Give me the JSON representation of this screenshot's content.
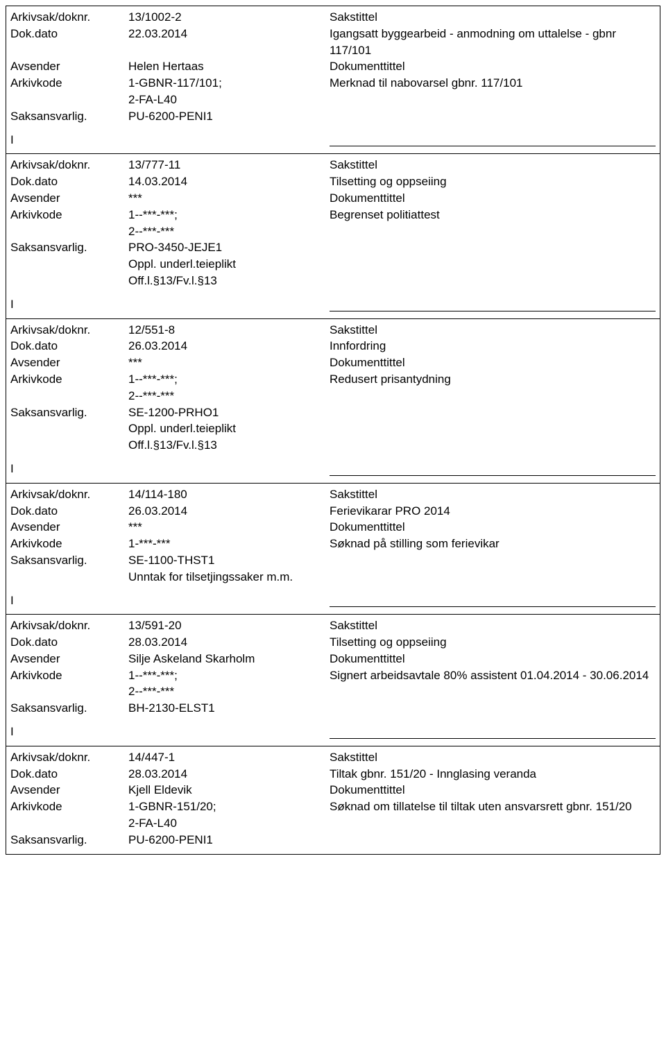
{
  "labels": {
    "arkivsak": "Arkivsak/doknr.",
    "dokdato": "Dok.dato",
    "avsender": "Avsender",
    "arkivkode": "Arkivkode",
    "saksansvarlig": "Saksansvarlig.",
    "sakstittel": "Sakstittel",
    "dokumenttittel": "Dokumenttittel",
    "i": "I"
  },
  "records": [
    {
      "arkivsak": "13/1002-2",
      "dokdato": "22.03.2014",
      "avsender": "Helen Hertaas",
      "arkivkode": "1-GBNR-117/101;\n2-FA-L40",
      "saksansvarlig": "PU-6200-PENI1",
      "extra": "",
      "sakstittel": "Igangsatt byggearbeid - anmodning om uttalelse - gbnr 117/101",
      "dokumenttittel": "Merknad til nabovarsel gbnr. 117/101",
      "show_i": true
    },
    {
      "arkivsak": "13/777-11",
      "dokdato": "14.03.2014",
      "avsender": "***",
      "arkivkode": "1--***-***;\n2--***-***",
      "saksansvarlig": "PRO-3450-JEJE1",
      "extra": "Oppl. underl.teieplikt\nOff.l.§13/Fv.l.§13",
      "sakstittel": "Tilsetting og oppseiing",
      "dokumenttittel": "Begrenset politiattest",
      "show_i": true
    },
    {
      "arkivsak": "12/551-8",
      "dokdato": "26.03.2014",
      "avsender": "***",
      "arkivkode": "1--***-***;\n2--***-***",
      "saksansvarlig": "SE-1200-PRHO1",
      "extra": "Oppl. underl.teieplikt\nOff.l.§13/Fv.l.§13",
      "sakstittel": "Innfordring",
      "dokumenttittel": "Redusert prisantydning",
      "show_i": true
    },
    {
      "arkivsak": "14/114-180",
      "dokdato": "26.03.2014",
      "avsender": "***",
      "arkivkode": "1-***-***",
      "saksansvarlig": "SE-1100-THST1",
      "extra": "Unntak for tilsetjingssaker m.m.",
      "sakstittel": "Ferievikarar PRO 2014",
      "dokumenttittel": "Søknad på stilling som ferievikar",
      "show_i": true
    },
    {
      "arkivsak": "13/591-20",
      "dokdato": "28.03.2014",
      "avsender": "Silje Askeland Skarholm",
      "arkivkode": "1--***-***;\n2--***-***",
      "saksansvarlig": "BH-2130-ELST1",
      "extra": "",
      "sakstittel": "Tilsetting og oppseiing",
      "dokumenttittel": "Signert arbeidsavtale 80% assistent 01.04.2014 - 30.06.2014",
      "show_i": true
    },
    {
      "arkivsak": "14/447-1",
      "dokdato": "28.03.2014",
      "avsender": "Kjell Eldevik",
      "arkivkode": "1-GBNR-151/20;\n2-FA-L40",
      "saksansvarlig": "PU-6200-PENI1",
      "extra": "",
      "sakstittel": "Tiltak gbnr. 151/20 - Innglasing veranda",
      "dokumenttittel": "Søknad om tillatelse til tiltak uten ansvarsrett gbnr. 151/20",
      "show_i": false
    }
  ]
}
